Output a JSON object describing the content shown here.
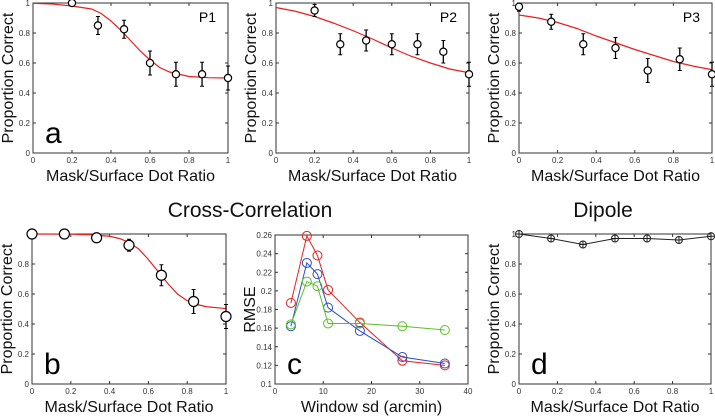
{
  "section_titles": {
    "cross_correlation": "Cross-Correlation",
    "dipole": "Dipole"
  },
  "chart_data": [
    {
      "id": "a",
      "type": "scatter",
      "panel_letter": "a",
      "participant": "P1",
      "xlabel": "Mask/Surface Dot Ratio",
      "ylabel": "Proportion Correct",
      "xlim": [
        0,
        1
      ],
      "ylim": [
        0,
        1
      ],
      "xticks": [
        0,
        0.2,
        0.4,
        0.6,
        0.8,
        1
      ],
      "yticks": [
        0,
        0.2,
        0.4,
        0.6,
        0.8,
        1
      ],
      "points": {
        "x": [
          0.2,
          0.333,
          0.467,
          0.6,
          0.733,
          0.867,
          1
        ],
        "y": [
          1.0,
          0.85,
          0.825,
          0.6,
          0.525,
          0.525,
          0.5
        ],
        "err": [
          0.0,
          0.06,
          0.06,
          0.08,
          0.08,
          0.08,
          0.08
        ]
      },
      "fit": {
        "color": "#e8201e",
        "x": [
          0,
          0.1,
          0.2,
          0.3,
          0.35,
          0.4,
          0.45,
          0.5,
          0.55,
          0.6,
          0.65,
          0.7,
          0.8,
          0.9,
          1
        ],
        "y": [
          0.998,
          0.993,
          0.98,
          0.96,
          0.93,
          0.88,
          0.82,
          0.75,
          0.68,
          0.62,
          0.57,
          0.54,
          0.51,
          0.502,
          0.5
        ]
      }
    },
    {
      "id": "p2",
      "type": "scatter",
      "participant": "P2",
      "xlabel": "Mask/Surface Dot Ratio",
      "ylabel": "Proportion Correct",
      "xlim": [
        0,
        1
      ],
      "ylim": [
        0,
        1
      ],
      "xticks": [
        0,
        0.2,
        0.4,
        0.6,
        0.8,
        1
      ],
      "yticks": [
        0,
        0.2,
        0.4,
        0.6,
        0.8,
        1
      ],
      "points": {
        "x": [
          0.2,
          0.333,
          0.467,
          0.6,
          0.733,
          0.867,
          1
        ],
        "y": [
          0.95,
          0.725,
          0.75,
          0.725,
          0.725,
          0.675,
          0.525
        ],
        "err": [
          0.04,
          0.07,
          0.07,
          0.07,
          0.07,
          0.075,
          0.08
        ]
      },
      "fit": {
        "color": "#e8201e",
        "x": [
          0,
          0.1,
          0.2,
          0.3,
          0.4,
          0.5,
          0.6,
          0.7,
          0.8,
          0.9,
          1
        ],
        "y": [
          0.97,
          0.945,
          0.91,
          0.865,
          0.815,
          0.76,
          0.7,
          0.645,
          0.6,
          0.56,
          0.535
        ]
      }
    },
    {
      "id": "p3",
      "type": "scatter",
      "participant": "P3",
      "xlabel": "Mask/Surface Dot Ratio",
      "ylabel": "Proportion Correct",
      "xlim": [
        0,
        1
      ],
      "ylim": [
        0,
        1
      ],
      "xticks": [
        0,
        0.2,
        0.4,
        0.6,
        0.8,
        1
      ],
      "yticks": [
        0,
        0.2,
        0.4,
        0.6,
        0.8,
        1
      ],
      "points": {
        "x": [
          0,
          0.167,
          0.333,
          0.5,
          0.667,
          0.833,
          1
        ],
        "y": [
          0.975,
          0.875,
          0.725,
          0.7,
          0.55,
          0.625,
          0.525
        ],
        "err": [
          0.03,
          0.05,
          0.07,
          0.07,
          0.08,
          0.075,
          0.08
        ]
      },
      "fit": {
        "color": "#e8201e",
        "x": [
          0,
          0.1,
          0.2,
          0.3,
          0.4,
          0.5,
          0.6,
          0.7,
          0.8,
          0.9,
          1
        ],
        "y": [
          0.92,
          0.9,
          0.87,
          0.83,
          0.78,
          0.735,
          0.69,
          0.65,
          0.61,
          0.58,
          0.555
        ]
      }
    },
    {
      "id": "b",
      "type": "scatter",
      "panel_letter": "b",
      "xlabel": "Mask/Surface Dot Ratio",
      "ylabel": "Proportion Correct",
      "xlim": [
        0,
        1
      ],
      "ylim": [
        0,
        1
      ],
      "xticks": [
        0,
        0.2,
        0.4,
        0.6,
        0.8,
        1
      ],
      "yticks": [
        0,
        0.2,
        0.4,
        0.6,
        0.8
      ],
      "points": {
        "x": [
          0,
          0.167,
          0.333,
          0.5,
          0.667,
          0.833,
          1
        ],
        "y": [
          1.0,
          1.0,
          0.975,
          0.925,
          0.725,
          0.55,
          0.45
        ],
        "err": [
          0.0,
          0.0,
          0.01,
          0.04,
          0.07,
          0.08,
          0.08
        ]
      },
      "fit": {
        "color": "#e8201e",
        "x": [
          0,
          0.2,
          0.3,
          0.4,
          0.45,
          0.5,
          0.55,
          0.6,
          0.65,
          0.7,
          0.75,
          0.8,
          0.85,
          0.9,
          1
        ],
        "y": [
          1.0,
          0.999,
          0.995,
          0.985,
          0.97,
          0.945,
          0.9,
          0.83,
          0.75,
          0.67,
          0.6,
          0.555,
          0.53,
          0.515,
          0.503
        ]
      }
    },
    {
      "id": "c",
      "type": "line",
      "panel_letter": "c",
      "xlabel": "Window sd (arcmin)",
      "ylabel": "RMSE",
      "xlim": [
        0,
        40
      ],
      "ylim": [
        0.1,
        0.26
      ],
      "xticks": [
        0,
        10,
        20,
        30,
        40
      ],
      "yticks": [
        0.1,
        0.12,
        0.14,
        0.16,
        0.18,
        0.2,
        0.22,
        0.24,
        0.26
      ],
      "x": [
        3.3,
        6.6,
        8.8,
        11,
        17.6,
        26.4,
        35.2
      ],
      "series": [
        {
          "name": "red",
          "color": "#e8201e",
          "values": [
            0.187,
            0.259,
            0.238,
            0.201,
            0.166,
            0.125,
            0.12
          ]
        },
        {
          "name": "blue",
          "color": "#2a4fc4",
          "values": [
            0.162,
            0.23,
            0.218,
            0.182,
            0.157,
            0.129,
            0.122
          ]
        },
        {
          "name": "green",
          "color": "#5cbf2a",
          "values": [
            0.164,
            0.21,
            0.205,
            0.165,
            0.165,
            0.162,
            0.158
          ]
        }
      ]
    },
    {
      "id": "d",
      "type": "line",
      "panel_letter": "d",
      "xlabel": "Mask/Surface Dot Ratio",
      "ylabel": "Proportion Correct",
      "xlim": [
        0,
        1
      ],
      "ylim": [
        0,
        1
      ],
      "xticks": [
        0,
        0.2,
        0.4,
        0.6,
        0.8,
        1
      ],
      "yticks": [
        0,
        0.2,
        0.4,
        0.6,
        0.8,
        1
      ],
      "x": [
        0,
        0.167,
        0.333,
        0.5,
        0.667,
        0.833,
        1
      ],
      "series": [
        {
          "name": "dipole",
          "color": "#222222",
          "values": [
            1.0,
            0.97,
            0.93,
            0.97,
            0.97,
            0.96,
            0.985
          ]
        }
      ]
    }
  ]
}
